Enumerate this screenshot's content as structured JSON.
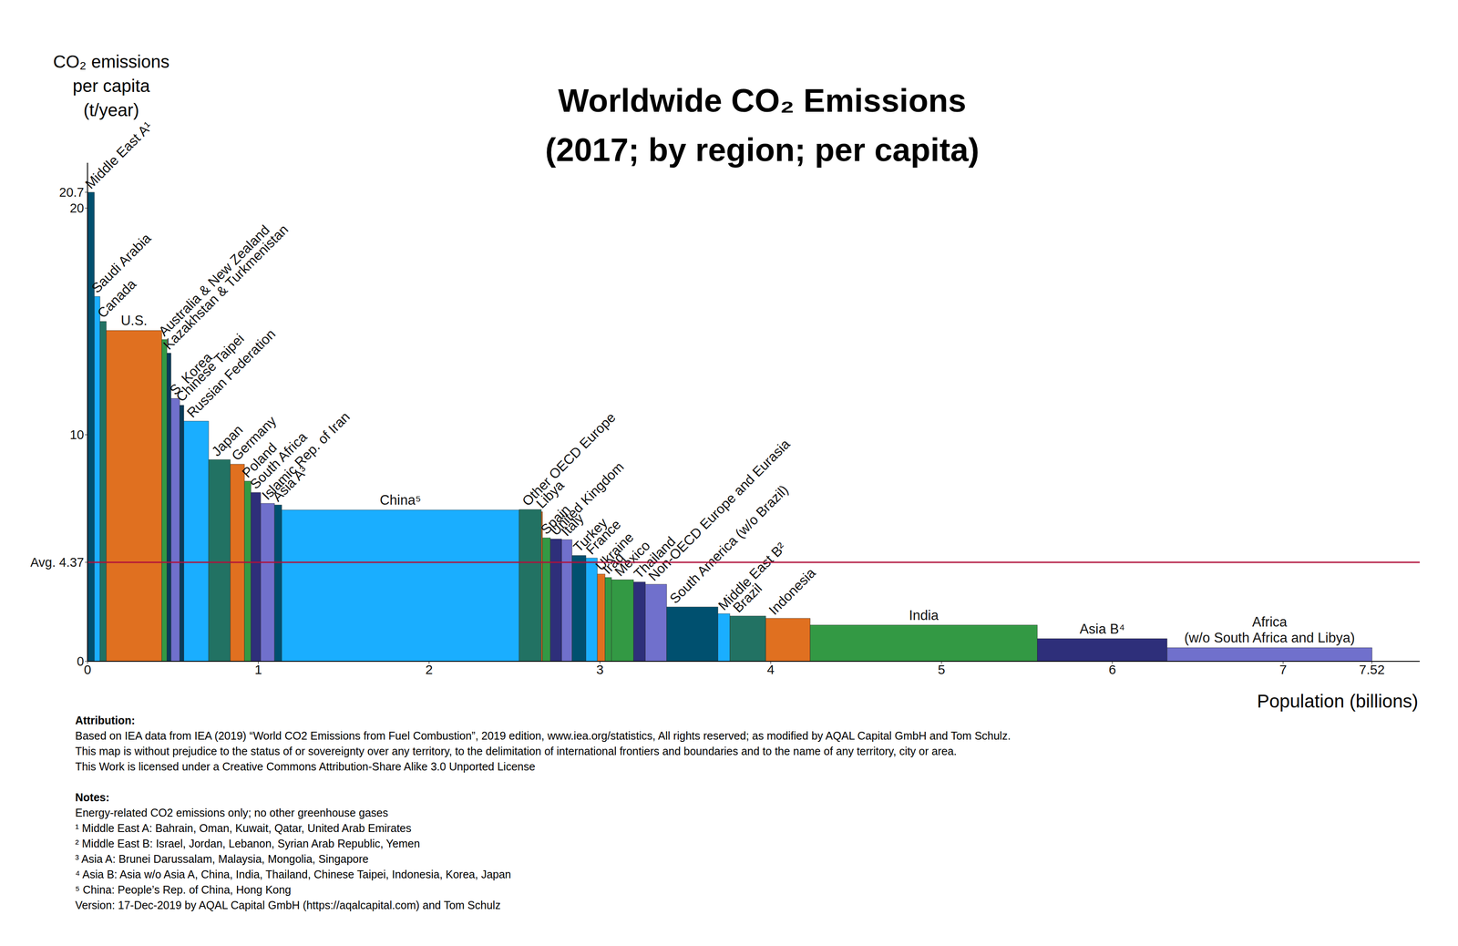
{
  "chart_data": {
    "type": "bar",
    "title": "Worldwide CO₂ Emissions",
    "subtitle": "(2017; by region; per capita)",
    "y_label": "CO₂ emissions\nper capita\n(t/year)",
    "x_label": "Population (billions)",
    "categories": [
      "Middle East A¹",
      "Saudi Arabia",
      "Canada",
      "U.S.",
      "Australia & New Zealand",
      "Kazakhstan & Turkmenistan",
      "S. Korea",
      "Chinese Taipei",
      "Russian Federation",
      "Japan",
      "Germany",
      "Poland",
      "South Africa",
      "Islamic Rep. of Iran",
      "Asia A³",
      "China⁵",
      "Other OECD Europe",
      "Libya",
      "Spain",
      "United Kingdom",
      "Italy",
      "Turkey",
      "France",
      "Ukraine",
      "Iraq",
      "Mexico",
      "Thailand",
      "Non-OECD Europe and Eurasia",
      "South America (w/o Brazil)",
      "Middle East B²",
      "Brazil",
      "Indonesia",
      "India",
      "Asia B⁴",
      "Africa\n(w/o South Africa and Libya)"
    ],
    "values": [
      20.7,
      16.1,
      15.0,
      14.6,
      14.2,
      13.6,
      11.6,
      11.3,
      10.6,
      8.9,
      8.7,
      7.95,
      7.45,
      6.97,
      6.9,
      6.68,
      6.7,
      6.6,
      5.45,
      5.4,
      5.37,
      4.67,
      4.56,
      3.85,
      3.7,
      3.6,
      3.5,
      3.4,
      2.4,
      2.1,
      2.0,
      1.9,
      1.6,
      1.0,
      0.6
    ],
    "populations": [
      0.04,
      0.033,
      0.037,
      0.325,
      0.03,
      0.024,
      0.051,
      0.024,
      0.145,
      0.127,
      0.083,
      0.038,
      0.057,
      0.081,
      0.042,
      1.39,
      0.13,
      0.007,
      0.046,
      0.066,
      0.061,
      0.081,
      0.067,
      0.045,
      0.038,
      0.129,
      0.069,
      0.125,
      0.3,
      0.07,
      0.21,
      0.26,
      1.33,
      0.76,
      1.2
    ],
    "colors": [
      "#00506f",
      "#1aaeff",
      "#227263",
      "#e07020",
      "#339944",
      "#0a3c5a",
      "#7070cc",
      "#0a3c5a",
      "#1aaeff",
      "#227263",
      "#e07020",
      "#339944",
      "#2e2f7a",
      "#7070cc",
      "#00506f",
      "#1aaeff",
      "#227263",
      "#e07020",
      "#339944",
      "#2e2f7a",
      "#7070cc",
      "#00506f",
      "#1aaeff",
      "#e07020",
      "#339944",
      "#339944",
      "#2e2f7a",
      "#7070cc",
      "#00506f",
      "#1aaeff",
      "#227263",
      "#e07020",
      "#339944",
      "#2e2f7a",
      "#7070cc"
    ],
    "average": 4.37,
    "average_color": "#b0103a",
    "xlim": [
      0,
      7.8
    ],
    "xticks": [
      0,
      1,
      2,
      3,
      4,
      5,
      6,
      7,
      7.52
    ],
    "ylim": [
      0,
      22
    ],
    "yticks": [
      0,
      {
        "value": 4.37,
        "label": "Avg. 4.37"
      },
      10,
      20,
      20.7
    ],
    "grid": false,
    "attribution_title": "Attribution:",
    "attribution": [
      "Based on IEA data from IEA (2019) “World CO2 Emissions from Fuel Combustion”, 2019 edition, www.iea.org/statistics, All rights reserved; as modified by AQAL Capital GmbH and Tom Schulz.",
      "This map is without prejudice to the status of or sovereignty over any territory, to the delimitation of international frontiers and boundaries and to the name of any territory, city or area.",
      "This Work is licensed under a Creative Commons Attribution-Share Alike 3.0 Unported License"
    ],
    "notes_title": "Notes:",
    "notes": [
      "Energy-related CO2 emissions only; no other greenhouse gases",
      "¹ Middle East A: Bahrain, Oman, Kuwait, Qatar, United Arab Emirates",
      "² Middle East B: Israel, Jordan, Lebanon, Syrian Arab Republic, Yemen",
      "³ Asia A: Brunei Darussalam, Malaysia, Mongolia, Singapore",
      "⁴ Asia B: Asia w/o Asia A, China, India, Thailand, Chinese Taipei, Indonesia, Korea, Japan",
      "⁵ China: People’s Rep. of China, Hong Kong",
      "Version: 17-Dec-2019 by AQAL Capital GmbH (https://aqalcapital.com) and Tom Schulz"
    ]
  }
}
